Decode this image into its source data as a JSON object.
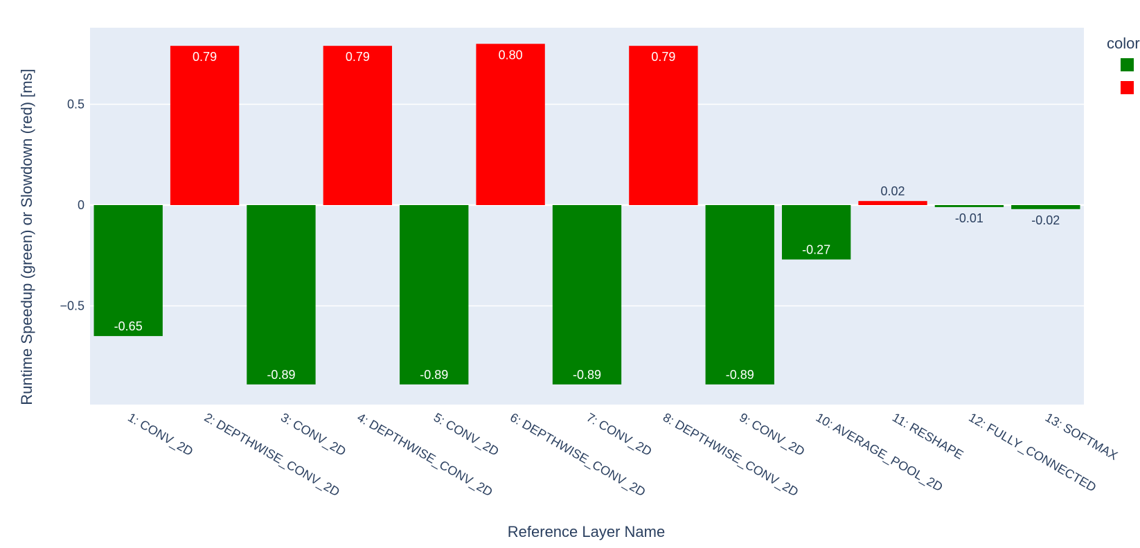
{
  "chart_data": {
    "type": "bar",
    "title": "",
    "xlabel": "Reference Layer Name",
    "ylabel": "Runtime Speedup (green) or Slowdown (red) [ms]",
    "ylim": [
      -0.99,
      0.88
    ],
    "yticks": [
      0.5,
      0,
      -0.5
    ],
    "ytick_labels": [
      "0.5",
      "0",
      "−0.5"
    ],
    "grid": true,
    "legend": {
      "title": "color",
      "position": "right",
      "colors": [
        "#008000",
        "#ff0000"
      ]
    },
    "categories": [
      "1: CONV_2D",
      "2: DEPTHWISE_CONV_2D",
      "3: CONV_2D",
      "4: DEPTHWISE_CONV_2D",
      "5: CONV_2D",
      "6: DEPTHWISE_CONV_2D",
      "7: CONV_2D",
      "8: DEPTHWISE_CONV_2D",
      "9: CONV_2D",
      "10: AVERAGE_POOL_2D",
      "11: RESHAPE",
      "12: FULLY_CONNECTED",
      "13: SOFTMAX"
    ],
    "values": [
      -0.65,
      0.79,
      -0.89,
      0.79,
      -0.89,
      0.8,
      -0.89,
      0.79,
      -0.89,
      -0.27,
      0.02,
      -0.01,
      -0.02
    ],
    "labels": [
      "-0.65",
      "0.79",
      "-0.89",
      "0.79",
      "-0.89",
      "0.80",
      "-0.89",
      "0.79",
      "-0.89",
      "-0.27",
      "0.02",
      "-0.01",
      "-0.02"
    ],
    "bar_colors": [
      "#008000",
      "#ff0000",
      "#008000",
      "#ff0000",
      "#008000",
      "#ff0000",
      "#008000",
      "#ff0000",
      "#008000",
      "#008000",
      "#ff0000",
      "#008000",
      "#008000"
    ],
    "plot_background": "#e5ecf6"
  }
}
